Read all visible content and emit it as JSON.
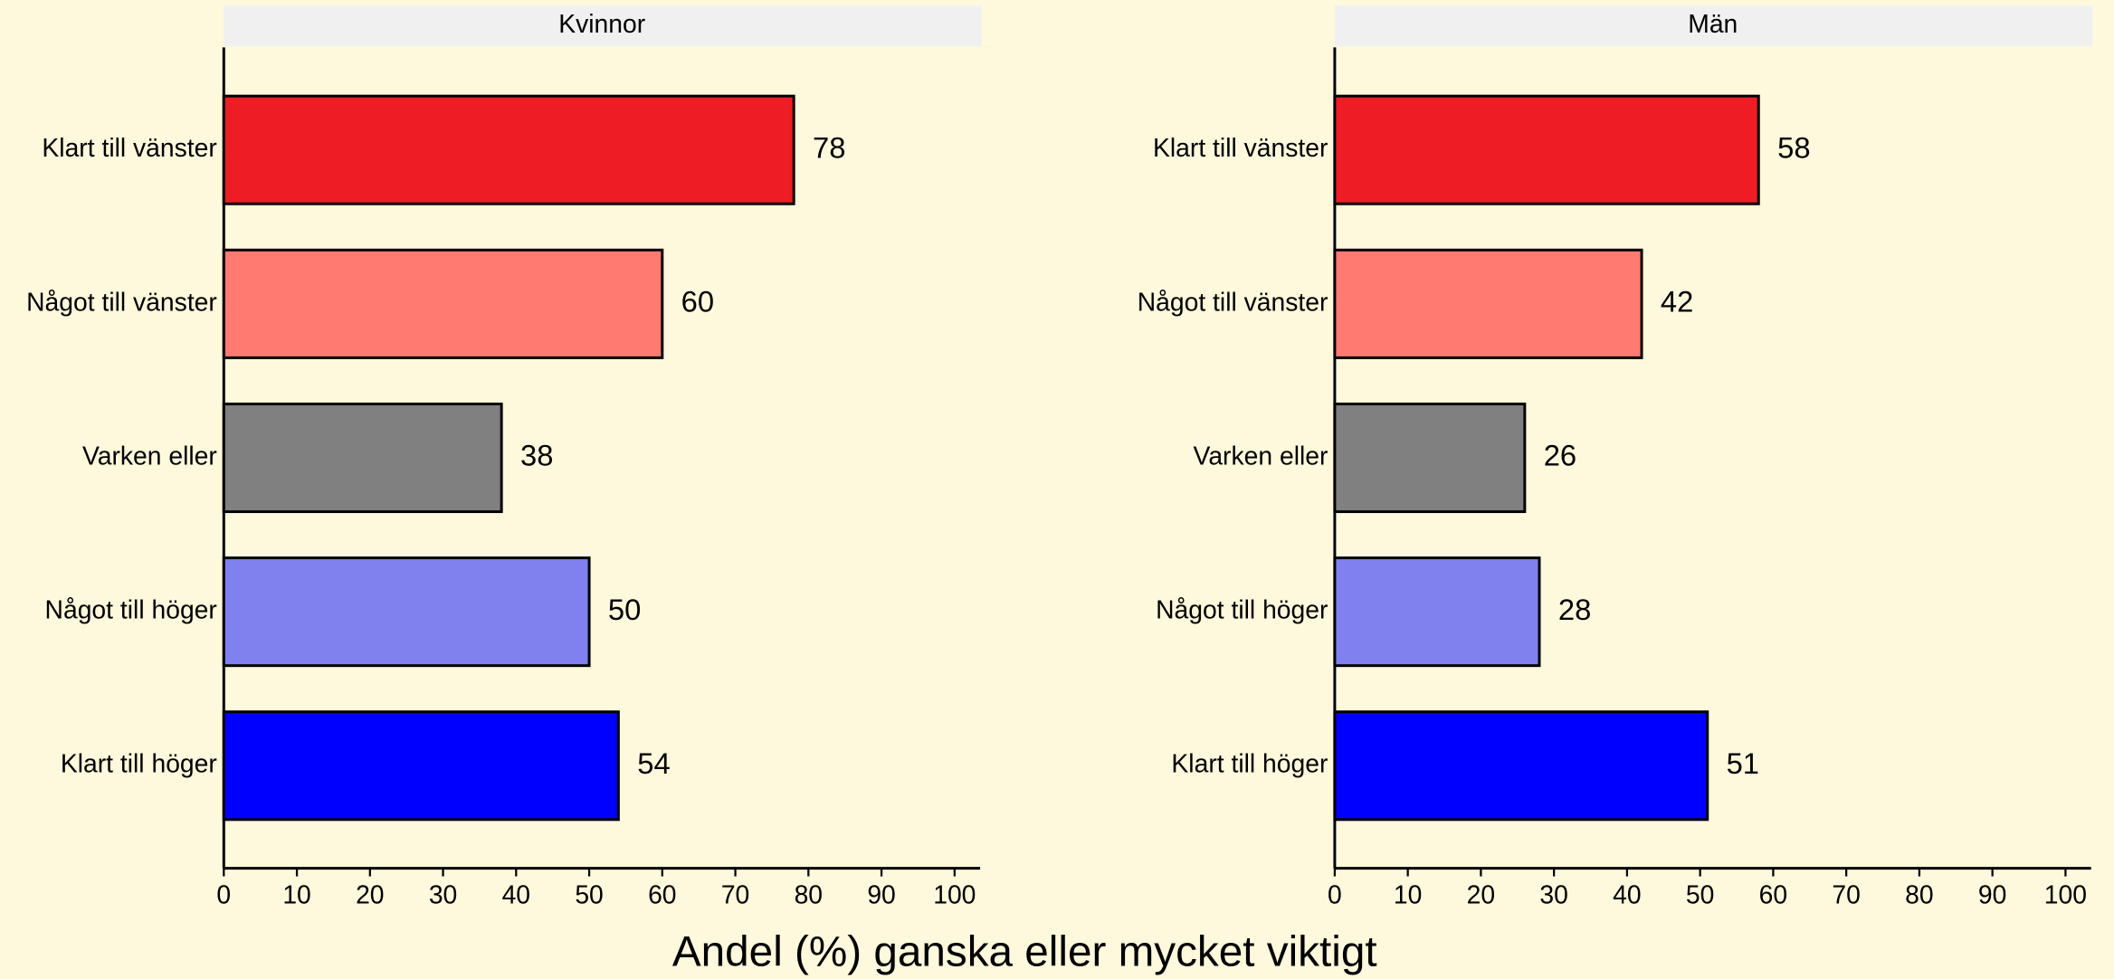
{
  "xlabel": "Andel (%) ganska eller mycket viktigt",
  "chart_data": [
    {
      "type": "bar",
      "orientation": "horizontal",
      "title": "Kvinnor",
      "categories": [
        "Klart till vänster",
        "Något till vänster",
        "Varken eller",
        "Något till höger",
        "Klart till höger"
      ],
      "values": [
        78,
        60,
        38,
        50,
        54
      ],
      "colors": [
        "#ee1c25",
        "#ff7b72",
        "#808080",
        "#8080ee",
        "#0000ff"
      ],
      "xlim": [
        0,
        103.5
      ],
      "xticks": [
        0,
        10,
        20,
        30,
        40,
        50,
        60,
        70,
        80,
        90,
        100
      ]
    },
    {
      "type": "bar",
      "orientation": "horizontal",
      "title": "Män",
      "categories": [
        "Klart till vänster",
        "Något till vänster",
        "Varken eller",
        "Något till höger",
        "Klart till höger"
      ],
      "values": [
        58,
        42,
        26,
        28,
        51
      ],
      "colors": [
        "#ee1c25",
        "#ff7b72",
        "#808080",
        "#8080ee",
        "#0000ff"
      ],
      "xlim": [
        0,
        103.5
      ],
      "xticks": [
        0,
        10,
        20,
        30,
        40,
        50,
        60,
        70,
        80,
        90,
        100
      ]
    }
  ]
}
